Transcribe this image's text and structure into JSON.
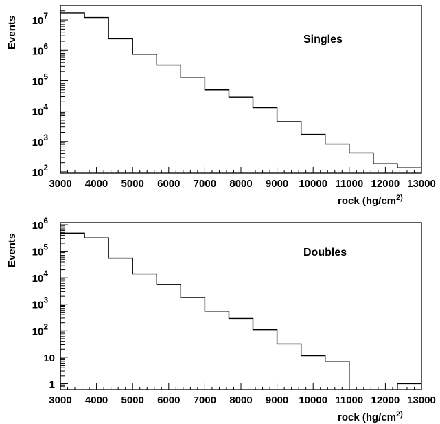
{
  "chart_data": [
    {
      "type": "histogram",
      "annotation": "Singles",
      "ylabel": "Events",
      "xlabel": "rock (hg/cm",
      "xlabel_sup": "2)",
      "xlim": [
        3000,
        13000
      ],
      "ylog": true,
      "y_tick_labels": [
        {
          "base": "10",
          "exp": "2"
        },
        {
          "base": "10",
          "exp": "3"
        },
        {
          "base": "10",
          "exp": "4"
        },
        {
          "base": "10",
          "exp": "5"
        },
        {
          "base": "10",
          "exp": "6"
        },
        {
          "base": "10",
          "exp": "7"
        }
      ],
      "x_tick_labels": [
        "3000",
        "4000",
        "5000",
        "6000",
        "7000",
        "8000",
        "9000",
        "10000",
        "11000",
        "12000",
        "13000"
      ],
      "bin_edges": [
        3000,
        3667,
        4333,
        5000,
        5667,
        6333,
        7000,
        7667,
        8333,
        9000,
        9667,
        10333,
        11000,
        11667,
        12333,
        13000
      ],
      "values": [
        17000000,
        12000000,
        2400000,
        750000,
        330000,
        125000,
        50000,
        29000,
        13000,
        4500,
        1700,
        820,
        420,
        185,
        135
      ]
    },
    {
      "type": "histogram",
      "annotation": "Doubles",
      "ylabel": "Events",
      "xlabel": "rock (hg/cm",
      "xlabel_sup": "2)",
      "xlim": [
        3000,
        13000
      ],
      "ylog": true,
      "y_tick_labels": [
        {
          "base": "1",
          "exp": ""
        },
        {
          "base": "10",
          "exp": ""
        },
        {
          "base": "10",
          "exp": "2"
        },
        {
          "base": "10",
          "exp": "3"
        },
        {
          "base": "10",
          "exp": "4"
        },
        {
          "base": "10",
          "exp": "5"
        },
        {
          "base": "10",
          "exp": "6"
        }
      ],
      "x_tick_labels": [
        "3000",
        "4000",
        "5000",
        "6000",
        "7000",
        "8000",
        "9000",
        "10000",
        "11000",
        "12000",
        "13000"
      ],
      "bin_edges": [
        3000,
        3667,
        4333,
        5000,
        5667,
        6333,
        7000,
        7667,
        8333,
        9000,
        9667,
        10333,
        11000,
        11667,
        12333,
        13000
      ],
      "values": [
        480000,
        320000,
        55000,
        14000,
        5500,
        1800,
        550,
        290,
        110,
        32,
        11.5,
        7,
        0,
        0,
        1
      ]
    }
  ]
}
